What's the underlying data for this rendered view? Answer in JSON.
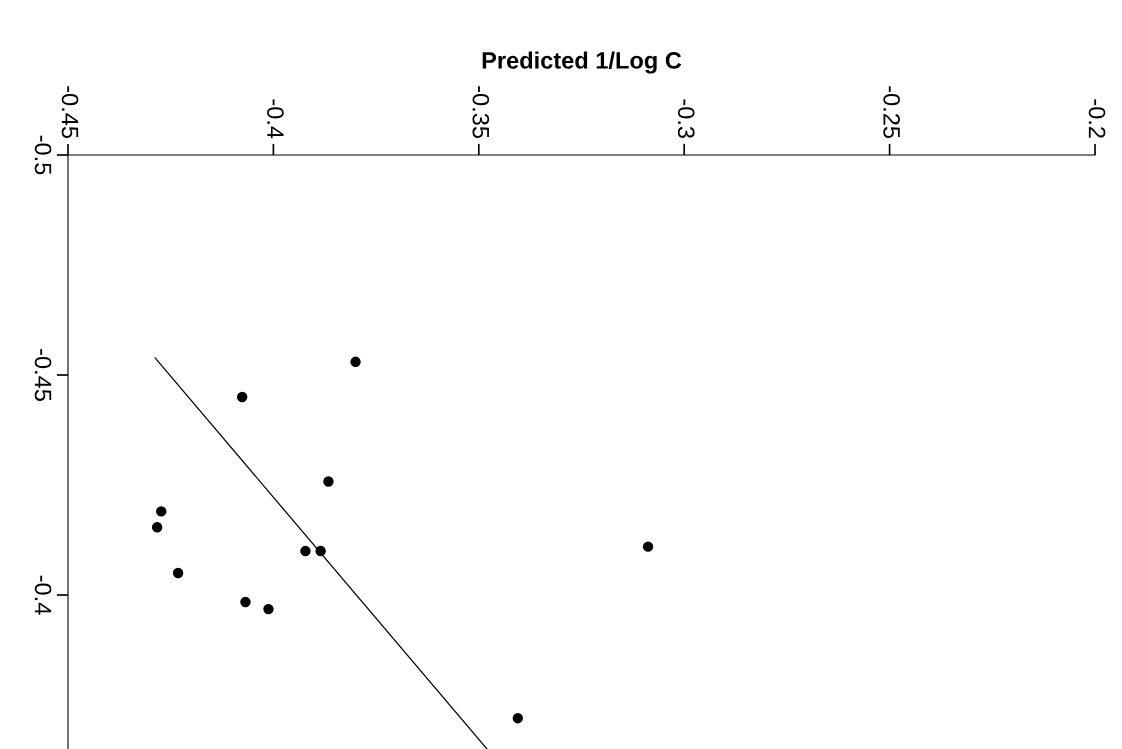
{
  "chart_data": {
    "type": "scatter",
    "xlabel": "Predicted 1/Log C",
    "xlim": [
      -0.45,
      -0.2
    ],
    "xticks": [
      -0.45,
      -0.4,
      -0.35,
      -0.3,
      -0.25,
      -0.2
    ],
    "ylim": [
      -0.365,
      -0.5
    ],
    "yticks": [
      -0.5,
      -0.45,
      -0.4
    ],
    "grid": false,
    "legend": false,
    "series": [
      {
        "marker": "circle",
        "color": "#000000",
        "x": [
          -0.38,
          -0.4076,
          -0.3866,
          -0.4273,
          -0.4283,
          -0.3922,
          -0.3885,
          -0.3088,
          -0.4232,
          -0.4068,
          -0.4012,
          -0.3405
        ],
        "values": [
          -0.453,
          -0.445,
          -0.4258,
          -0.419,
          -0.4154,
          -0.41,
          -0.41,
          -0.411,
          -0.405,
          -0.3984,
          -0.3968,
          -0.372
        ]
      },
      {
        "type": "line",
        "marker": "none",
        "color": "#000000",
        "line_style": "solid",
        "x": [
          -0.4288,
          -0.348
        ],
        "values": [
          -0.4539,
          -0.365
        ]
      }
    ]
  }
}
